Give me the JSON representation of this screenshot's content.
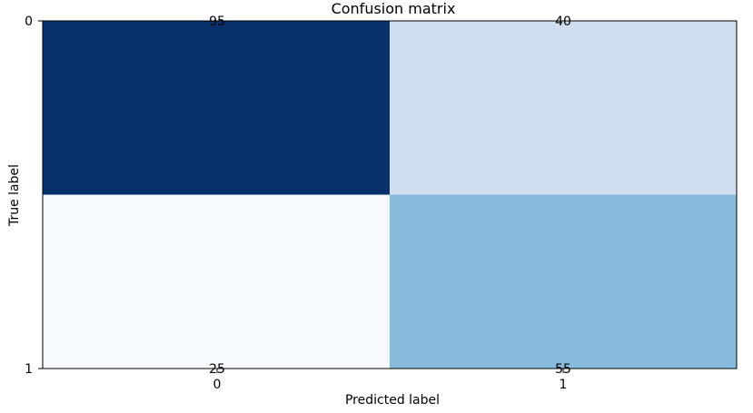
{
  "chart_data": {
    "type": "heatmap",
    "title": "Confusion matrix",
    "xlabel": "Predicted label",
    "ylabel": "True label",
    "x_categories": [
      "0",
      "1"
    ],
    "y_categories": [
      "0",
      "1"
    ],
    "values": [
      [
        95,
        40
      ],
      [
        25,
        55
      ]
    ],
    "colormap": "Blues",
    "grid": false,
    "colors": {
      "cell_0_0": "#08306b",
      "cell_0_1": "#cfdff0",
      "cell_1_0": "#f7fbff",
      "cell_1_1": "#88bcdd",
      "dark_text": "#000000",
      "light_text": "#ffffff"
    }
  }
}
